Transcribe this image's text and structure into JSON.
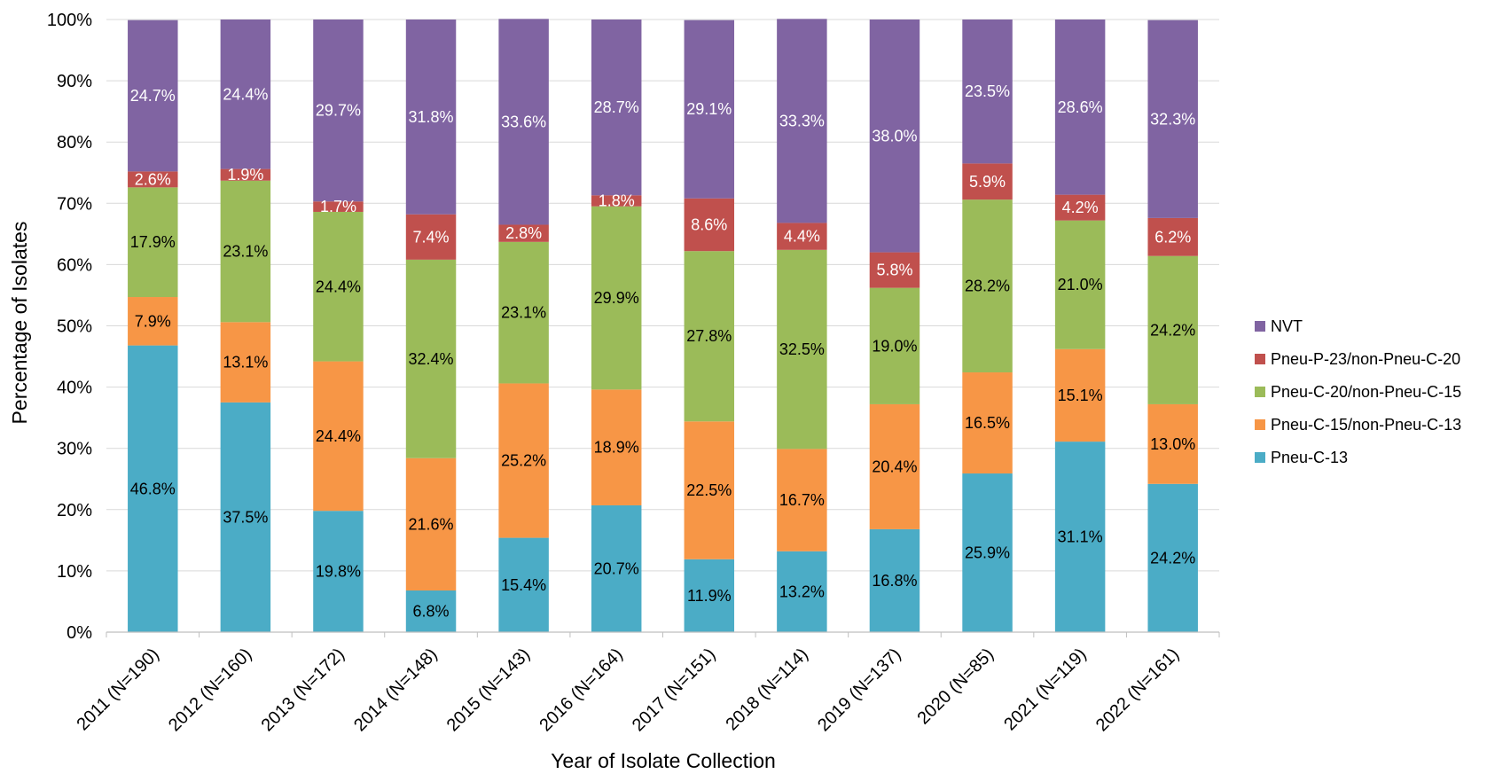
{
  "chart_data": {
    "type": "bar",
    "stacked": true,
    "xlabel": "Year of Isolate Collection",
    "ylabel": "Percentage of Isolates",
    "ylim": [
      0,
      100
    ],
    "yticks": [
      "0%",
      "10%",
      "20%",
      "30%",
      "40%",
      "50%",
      "60%",
      "70%",
      "80%",
      "90%",
      "100%"
    ],
    "grid": true,
    "legend_position": "right",
    "categories": [
      "2011 (N=190)",
      "2012 (N=160)",
      "2013 (N=172)",
      "2014 (N=148)",
      "2015 (N=143)",
      "2016 (N=164)",
      "2017 (N=151)",
      "2018 (N=114)",
      "2019 (N=137)",
      "2020 (N=85)",
      "2021 (N=119)",
      "2022 (N=161)"
    ],
    "series": [
      {
        "name": "Pneu-C-13",
        "color": "#4bacc6",
        "label_color": "#000000",
        "values": [
          46.8,
          37.5,
          19.8,
          6.8,
          15.4,
          20.7,
          11.9,
          13.2,
          16.8,
          25.9,
          31.1,
          24.2
        ],
        "labels": [
          "46.8%",
          "37.5%",
          "19.8%",
          "6.8%",
          "15.4%",
          "20.7%",
          "11.9%",
          "13.2%",
          "16.8%",
          "25.9%",
          "31.1%",
          "24.2%"
        ]
      },
      {
        "name": "Pneu-C-15/non-Pneu-C-13",
        "color": "#f79646",
        "label_color": "#000000",
        "values": [
          7.9,
          13.1,
          24.4,
          21.6,
          25.2,
          18.9,
          22.5,
          16.7,
          20.4,
          16.5,
          15.1,
          13.0
        ],
        "labels": [
          "7.9%",
          "13.1%",
          "24.4%",
          "21.6%",
          "25.2%",
          "18.9%",
          "22.5%",
          "16.7%",
          "20.4%",
          "16.5%",
          "15.1%",
          "13.0%"
        ]
      },
      {
        "name": "Pneu-C-20/non-Pneu-C-15",
        "color": "#9bbb59",
        "label_color": "#000000",
        "values": [
          17.9,
          23.1,
          24.4,
          32.4,
          23.1,
          29.9,
          27.8,
          32.5,
          19.0,
          28.2,
          21.0,
          24.2
        ],
        "labels": [
          "17.9%",
          "23.1%",
          "24.4%",
          "32.4%",
          "23.1%",
          "29.9%",
          "27.8%",
          "32.5%",
          "19.0%",
          "28.2%",
          "21.0%",
          "24.2%"
        ]
      },
      {
        "name": "Pneu-P-23/non-Pneu-C-20",
        "color": "#c0504d",
        "label_color": "#ffffff",
        "values": [
          2.6,
          1.9,
          1.7,
          7.4,
          2.8,
          1.8,
          8.6,
          4.4,
          5.8,
          5.9,
          4.2,
          6.2
        ],
        "labels": [
          "2.6%",
          "1.9%",
          "1.7%",
          "7.4%",
          "2.8%",
          "1.8%",
          "8.6%",
          "4.4%",
          "5.8%",
          "5.9%",
          "4.2%",
          "6.2%"
        ]
      },
      {
        "name": "NVT",
        "color": "#8064a2",
        "label_color": "#ffffff",
        "values": [
          24.7,
          24.4,
          29.7,
          31.8,
          33.6,
          28.7,
          29.1,
          33.3,
          38.0,
          23.5,
          28.6,
          32.3
        ],
        "labels": [
          "24.7%",
          "24.4%",
          "29.7%",
          "31.8%",
          "33.6%",
          "28.7%",
          "29.1%",
          "33.3%",
          "38.0%",
          "23.5%",
          "28.6%",
          "32.3%"
        ]
      }
    ],
    "legend_order": [
      "NVT",
      "Pneu-P-23/non-Pneu-C-20",
      "Pneu-C-20/non-Pneu-C-15",
      "Pneu-C-15/non-Pneu-C-13",
      "Pneu-C-13"
    ]
  }
}
